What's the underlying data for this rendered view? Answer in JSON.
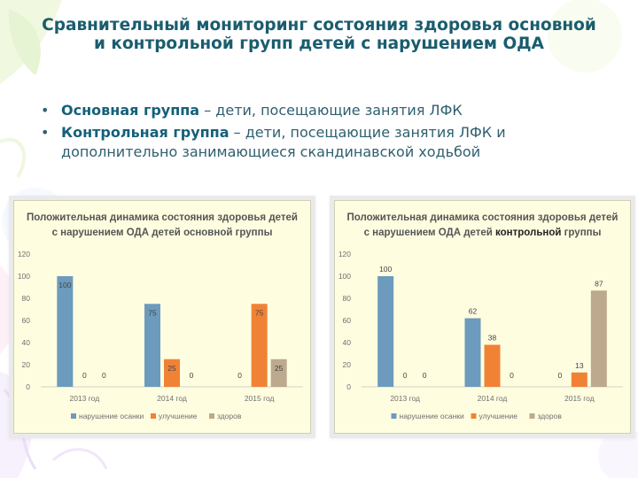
{
  "slide": {
    "title": "Сравнительный мониторинг состояния здоровья основной и контрольной групп детей с нарушением ОДА",
    "bullets": [
      {
        "bold": "Основная группа",
        "rest": " – дети, посещающие занятия ЛФК"
      },
      {
        "bold": "Контрольная группа",
        "rest": " – дети, посещающие занятия ЛФК и дополнительно занимающиеся скандинавской ходьбой"
      }
    ]
  },
  "chart_data": [
    {
      "type": "bar",
      "title_line1": "Положительная динамика состояния здоровья детей",
      "title_line2_pre": "с нарушением ОДА детей",
      "title_line2_bold": "",
      "title_line2_post": " основной группы",
      "categories": [
        "2013 год",
        "2014 год",
        "2015 год"
      ],
      "series": [
        {
          "name": "нарушение осанки",
          "color": "#6c9bbd",
          "values": [
            100,
            75,
            0
          ]
        },
        {
          "name": "улучшение",
          "color": "#f08236",
          "values": [
            0,
            25,
            75
          ]
        },
        {
          "name": "здоров",
          "color": "#bca98e",
          "values": [
            0,
            0,
            25
          ]
        }
      ],
      "ylim": [
        0,
        120
      ],
      "yticks": [
        0,
        20,
        40,
        60,
        80,
        100,
        120
      ],
      "labels_inside": true,
      "legend_position": "bottom"
    },
    {
      "type": "bar",
      "title_line1": "Положительная динамика состояния здоровья детей",
      "title_line2_pre": "с нарушением ОДА детей ",
      "title_line2_bold": "контрольной",
      "title_line2_post": " группы",
      "categories": [
        "2013 год",
        "2014 год",
        "2015 год"
      ],
      "series": [
        {
          "name": "нарушение осанки",
          "color": "#6c9bbd",
          "values": [
            100,
            62,
            0
          ]
        },
        {
          "name": "улучшение",
          "color": "#f08236",
          "values": [
            0,
            38,
            13
          ]
        },
        {
          "name": "здоров",
          "color": "#bca98e",
          "values": [
            0,
            0,
            87
          ]
        }
      ],
      "ylim": [
        0,
        120
      ],
      "yticks": [
        0,
        20,
        40,
        60,
        80,
        100,
        120
      ],
      "labels_inside": false,
      "legend_position": "bottom"
    }
  ]
}
